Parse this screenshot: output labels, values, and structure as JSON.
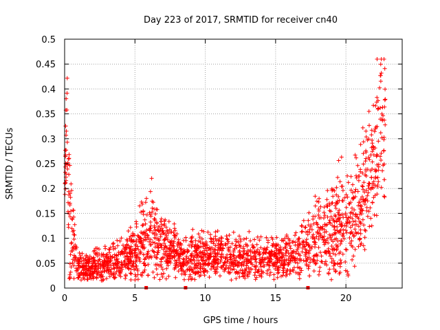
{
  "chart_data": {
    "type": "scatter",
    "title": "Day 223 of 2017, SRMTID for receiver cn40",
    "xlabel": "GPS time / hours",
    "ylabel": "SRMTID / TECUs",
    "xlim": [
      0,
      24
    ],
    "ylim": [
      0,
      0.5
    ],
    "xticks": [
      0,
      5,
      10,
      15,
      20
    ],
    "yticks": [
      0,
      0.05,
      0.1,
      0.15,
      0.2,
      0.25,
      0.3,
      0.35,
      0.4,
      0.45,
      0.5
    ],
    "xtick_labels": [
      "0",
      "5",
      "10",
      "15",
      "20"
    ],
    "ytick_labels": [
      "0",
      "0.05",
      "0.1",
      "0.15",
      "0.2",
      "0.25",
      "0.3",
      "0.35",
      "0.4",
      "0.45",
      "0.5"
    ],
    "grid": true,
    "marker": "plus",
    "color": "#ff0000",
    "zero_markers_x": [
      5.8,
      8.6,
      17.3
    ],
    "trend": [
      [
        0.0,
        0.14
      ],
      [
        0.1,
        0.3
      ],
      [
        0.15,
        0.4
      ],
      [
        0.25,
        0.2
      ],
      [
        0.4,
        0.1
      ],
      [
        0.7,
        0.08
      ],
      [
        1.0,
        0.04
      ],
      [
        1.5,
        0.04
      ],
      [
        2.5,
        0.045
      ],
      [
        3.5,
        0.05
      ],
      [
        4.5,
        0.06
      ],
      [
        5.0,
        0.07
      ],
      [
        5.5,
        0.09
      ],
      [
        6.2,
        0.11
      ],
      [
        7.0,
        0.08
      ],
      [
        8.0,
        0.065
      ],
      [
        9.0,
        0.06
      ],
      [
        10.0,
        0.06
      ],
      [
        11.0,
        0.065
      ],
      [
        12.0,
        0.06
      ],
      [
        13.0,
        0.06
      ],
      [
        14.0,
        0.06
      ],
      [
        15.0,
        0.06
      ],
      [
        16.0,
        0.065
      ],
      [
        17.0,
        0.08
      ],
      [
        17.5,
        0.09
      ],
      [
        18.0,
        0.11
      ],
      [
        18.5,
        0.1
      ],
      [
        19.0,
        0.1
      ],
      [
        19.5,
        0.13
      ],
      [
        20.0,
        0.14
      ],
      [
        20.5,
        0.14
      ],
      [
        21.0,
        0.16
      ],
      [
        21.5,
        0.2
      ],
      [
        22.0,
        0.25
      ],
      [
        22.5,
        0.31
      ],
      [
        22.8,
        0.33
      ]
    ],
    "spread": [
      [
        0.0,
        0.02
      ],
      [
        0.3,
        0.1
      ],
      [
        0.6,
        0.03
      ],
      [
        1.0,
        0.015
      ],
      [
        4.0,
        0.02
      ],
      [
        5.5,
        0.035
      ],
      [
        6.5,
        0.04
      ],
      [
        7.5,
        0.025
      ],
      [
        10.0,
        0.022
      ],
      [
        15.0,
        0.02
      ],
      [
        17.0,
        0.025
      ],
      [
        18.0,
        0.04
      ],
      [
        19.5,
        0.05
      ],
      [
        21.0,
        0.06
      ],
      [
        22.0,
        0.07
      ],
      [
        22.8,
        0.08
      ]
    ],
    "point_count": 2200
  }
}
